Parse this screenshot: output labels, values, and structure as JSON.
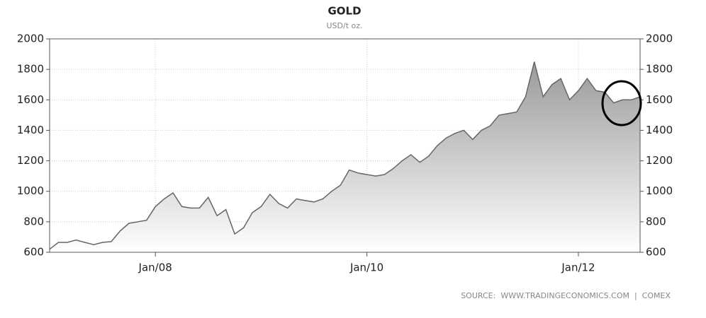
{
  "chart_data": {
    "type": "area",
    "title": "GOLD",
    "subtitle": "USD/t oz.",
    "source": "SOURCE:  WWW.TRADINGECONOMICS.COM  |  COMEX",
    "x": [
      "Jan/07",
      "Feb/07",
      "Mar/07",
      "Apr/07",
      "May/07",
      "Jun/07",
      "Jul/07",
      "Aug/07",
      "Sep/07",
      "Oct/07",
      "Nov/07",
      "Dec/07",
      "Jan/08",
      "Feb/08",
      "Mar/08",
      "Apr/08",
      "May/08",
      "Jun/08",
      "Jul/08",
      "Aug/08",
      "Sep/08",
      "Oct/08",
      "Nov/08",
      "Dec/08",
      "Jan/09",
      "Feb/09",
      "Mar/09",
      "Apr/09",
      "May/09",
      "Jun/09",
      "Jul/09",
      "Aug/09",
      "Sep/09",
      "Oct/09",
      "Nov/09",
      "Dec/09",
      "Jan/10",
      "Feb/10",
      "Mar/10",
      "Apr/10",
      "May/10",
      "Jun/10",
      "Jul/10",
      "Aug/10",
      "Sep/10",
      "Oct/10",
      "Nov/10",
      "Dec/10",
      "Jan/11",
      "Feb/11",
      "Mar/11",
      "Apr/11",
      "May/11",
      "Jun/11",
      "Jul/11",
      "Aug/11",
      "Sep/11",
      "Oct/11",
      "Nov/11",
      "Dec/11",
      "Jan/12",
      "Feb/12",
      "Mar/12",
      "Apr/12",
      "May/12",
      "Jun/12",
      "Jul/12",
      "Aug/12"
    ],
    "values": [
      620,
      665,
      665,
      680,
      665,
      650,
      665,
      670,
      740,
      790,
      800,
      810,
      900,
      950,
      990,
      900,
      890,
      890,
      960,
      840,
      880,
      720,
      760,
      860,
      900,
      980,
      920,
      890,
      950,
      940,
      930,
      950,
      1000,
      1040,
      1140,
      1120,
      1110,
      1100,
      1110,
      1150,
      1200,
      1240,
      1190,
      1230,
      1300,
      1350,
      1380,
      1400,
      1340,
      1400,
      1430,
      1500,
      1510,
      1520,
      1620,
      1850,
      1620,
      1700,
      1740,
      1600,
      1660,
      1740,
      1660,
      1650,
      1580,
      1600,
      1600,
      1620
    ],
    "color": "#666666",
    "xticks": [
      "Jan/08",
      "Jan/10",
      "Jan/12"
    ],
    "ylim": [
      600,
      2000
    ],
    "yticks": [
      600,
      800,
      1000,
      1200,
      1400,
      1600,
      1800,
      2000
    ],
    "grid": true
  }
}
